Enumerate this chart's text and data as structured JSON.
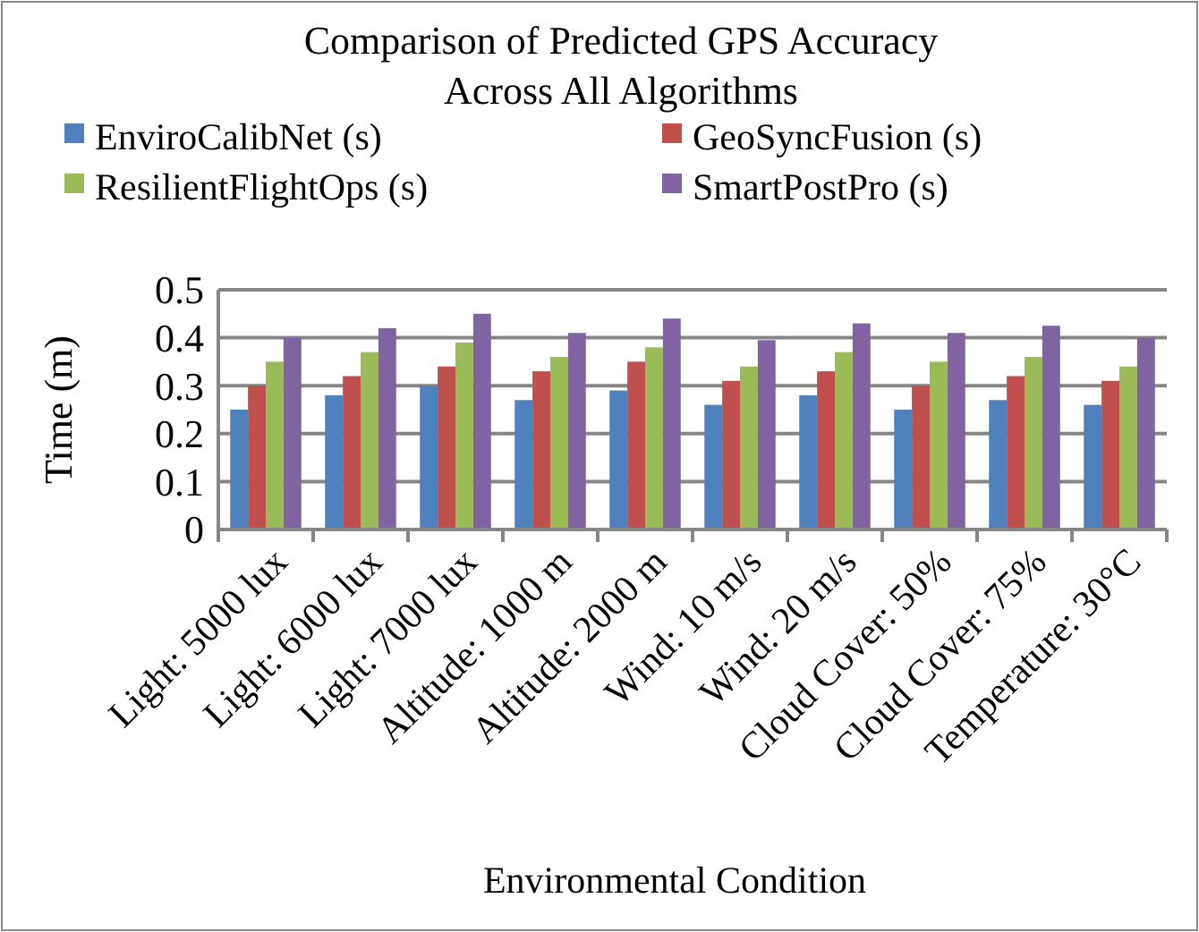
{
  "chart_data": {
    "type": "bar",
    "title": "Comparison of Predicted GPS Accuracy Across All Algorithms",
    "xlabel": "Environmental Condition",
    "ylabel": "Time (m)",
    "categories": [
      "Light: 5000 lux",
      "Light: 6000 lux",
      "Light: 7000 lux",
      "Altitude: 1000 m",
      "Altitude: 2000 m",
      "Wind: 10 m/s",
      "Wind: 20 m/s",
      "Cloud Cover: 50%",
      "Cloud Cover: 75%",
      "Temperature: 30°C"
    ],
    "series": [
      {
        "name": "EnviroCalibNet (s)",
        "color": "#4f81bd",
        "values": [
          0.25,
          0.28,
          0.3,
          0.27,
          0.29,
          0.26,
          0.28,
          0.25,
          0.27,
          0.26
        ]
      },
      {
        "name": "GeoSyncFusion (s)",
        "color": "#c0504d",
        "values": [
          0.3,
          0.32,
          0.34,
          0.33,
          0.35,
          0.31,
          0.33,
          0.3,
          0.32,
          0.31
        ]
      },
      {
        "name": "ResilientFlightOps (s)",
        "color": "#9bbb59",
        "values": [
          0.35,
          0.37,
          0.39,
          0.36,
          0.38,
          0.34,
          0.37,
          0.35,
          0.36,
          0.34
        ]
      },
      {
        "name": "SmartPostPro (s)",
        "color": "#8064a2",
        "values": [
          0.4,
          0.42,
          0.45,
          0.41,
          0.44,
          0.395,
          0.43,
          0.41,
          0.425,
          0.4
        ]
      }
    ],
    "ylim": [
      0,
      0.5
    ],
    "yticks": [
      0,
      0.1,
      0.2,
      0.3,
      0.4,
      0.5
    ],
    "grid": "y",
    "legend": "top"
  }
}
